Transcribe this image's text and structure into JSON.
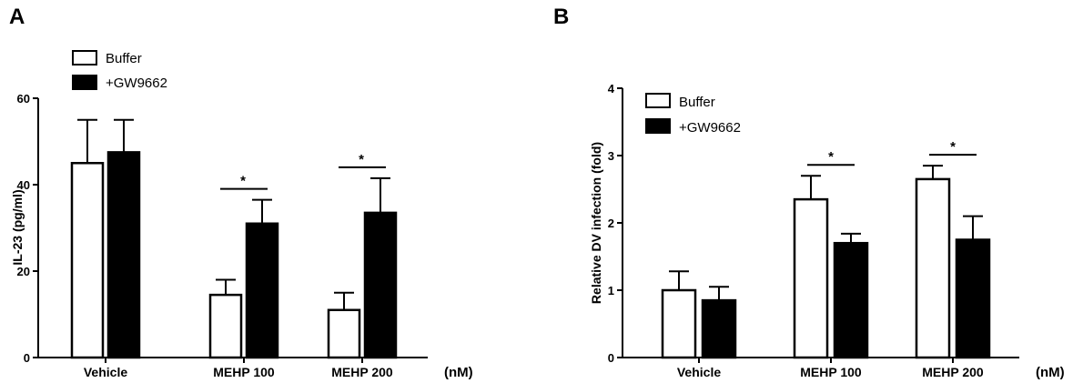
{
  "chart_data": [
    {
      "panel": "A",
      "type": "bar",
      "categories": [
        "Vehicle",
        "MEHP 100",
        "MEHP 200"
      ],
      "unit_label": "(nM)",
      "ylabel": "IL-23 (pg/ml)",
      "ylim": [
        0,
        60
      ],
      "yticks": [
        "0",
        "20",
        "40",
        "60"
      ],
      "legend": [
        "Buffer",
        "+GW9662"
      ],
      "series": [
        {
          "name": "Buffer",
          "color": "#ffffff",
          "values": [
            45,
            14.5,
            11
          ],
          "errors": [
            10,
            3.5,
            4
          ]
        },
        {
          "name": "+GW9662",
          "color": "#000000",
          "values": [
            47.5,
            31,
            33.5
          ],
          "errors": [
            7.5,
            5.5,
            8
          ]
        }
      ],
      "significance": [
        {
          "category": "MEHP 100",
          "mark": "*"
        },
        {
          "category": "MEHP 200",
          "mark": "*"
        }
      ]
    },
    {
      "panel": "B",
      "type": "bar",
      "categories": [
        "Vehicle",
        "MEHP 100",
        "MEHP 200"
      ],
      "unit_label": "(nM)",
      "ylabel": "Relative DV infection (fold)",
      "ylim": [
        0,
        4
      ],
      "yticks": [
        "0",
        "1",
        "2",
        "3",
        "4"
      ],
      "legend": [
        "Buffer",
        "+GW9662"
      ],
      "series": [
        {
          "name": "Buffer",
          "color": "#ffffff",
          "values": [
            1.0,
            2.35,
            2.65
          ],
          "errors": [
            0.28,
            0.35,
            0.2
          ]
        },
        {
          "name": "+GW9662",
          "color": "#000000",
          "values": [
            0.85,
            1.7,
            1.75
          ],
          "errors": [
            0.2,
            0.14,
            0.35
          ]
        }
      ],
      "significance": [
        {
          "category": "MEHP 100",
          "mark": "*"
        },
        {
          "category": "MEHP 200",
          "mark": "*"
        }
      ]
    }
  ]
}
